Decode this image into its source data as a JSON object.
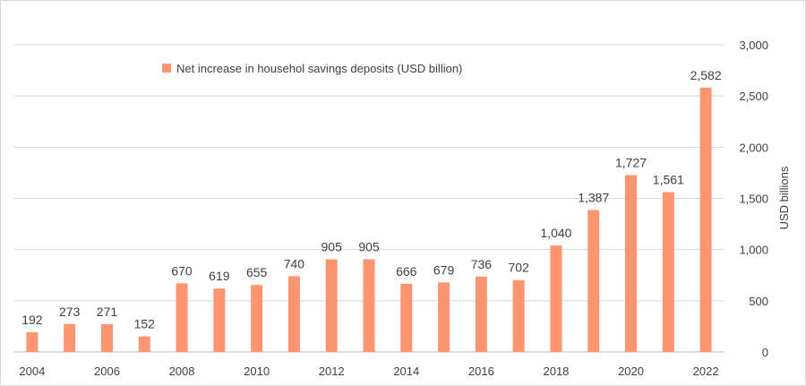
{
  "chart_data": {
    "type": "bar",
    "categories": [
      "2004",
      "2005",
      "2006",
      "2007",
      "2008",
      "2009",
      "2010",
      "2011",
      "2012",
      "2013",
      "2014",
      "2015",
      "2016",
      "2017",
      "2018",
      "2019",
      "2020",
      "2021",
      "2022"
    ],
    "x_tick_labels": [
      "2004",
      "2006",
      "2008",
      "2010",
      "2012",
      "2014",
      "2016",
      "2018",
      "2020",
      "2022"
    ],
    "series": [
      {
        "name": "Net increase in househol savings deposits (USD billion)",
        "values": [
          192,
          273,
          271,
          152,
          670,
          619,
          655,
          740,
          905,
          905,
          666,
          679,
          736,
          702,
          1040,
          1387,
          1727,
          1561,
          2582
        ],
        "data_labels": [
          "192",
          "273",
          "271",
          "152",
          "670",
          "619",
          "655",
          "740",
          "905",
          "905",
          "666",
          "679",
          "736",
          "702",
          "1,040",
          "1,387",
          "1,727",
          "1,561",
          "2,582"
        ],
        "color": "#ff9470"
      }
    ],
    "ylabel": "USD billions",
    "y_axis_position": "right",
    "ylim": [
      0,
      3000
    ],
    "y_ticks": [
      0,
      500,
      1000,
      1500,
      2000,
      2500,
      3000
    ],
    "y_tick_labels": [
      "0",
      "500",
      "1,000",
      "1,500",
      "2,000",
      "2,500",
      "3,000"
    ],
    "grid": true,
    "legend_position": "top-left"
  }
}
